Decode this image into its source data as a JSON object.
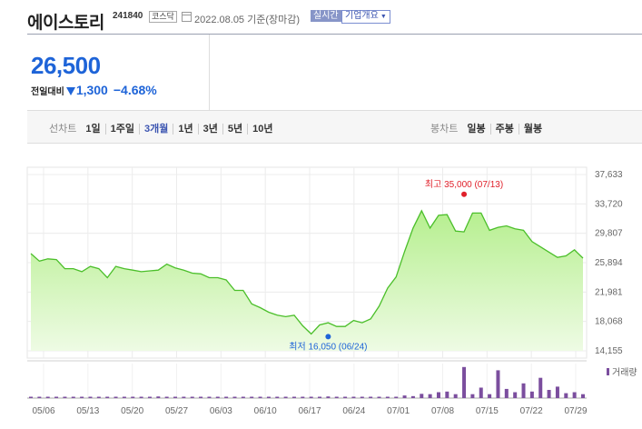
{
  "header": {
    "name": "에이스토리",
    "code": "241840",
    "market": "코스닥",
    "date": "2022.08.05 기준(장마감)",
    "realtime_label": "실시간",
    "info_label": "기업개요"
  },
  "price": {
    "current": "26,500",
    "compare_label": "전일대비",
    "change": "1,300",
    "change_pct": "−4.68%",
    "color": "#1e64d8"
  },
  "toolbar": {
    "line_label": "선차트",
    "periods": [
      "1일",
      "1주일",
      "3개월",
      "1년",
      "3년",
      "5년",
      "10년"
    ],
    "selected_period": "3개월",
    "candle_label": "봉차트",
    "candles": [
      "일봉",
      "주봉",
      "월봉"
    ]
  },
  "chart_data": {
    "type": "area",
    "x_ticks": [
      "05/06",
      "05/13",
      "05/20",
      "05/27",
      "06/03",
      "06/10",
      "06/17",
      "06/24",
      "07/01",
      "07/08",
      "07/15",
      "07/22",
      "07/29"
    ],
    "y_ticks": [
      "37,633",
      "33,720",
      "29,807",
      "25,894",
      "21,981",
      "18,068",
      "14,155"
    ],
    "ylim": [
      14155,
      37633
    ],
    "series": [
      {
        "values": [
          27100,
          26100,
          26400,
          26300,
          25100,
          25100,
          24700,
          25400,
          25100,
          23900,
          25400,
          25100,
          24900,
          24700,
          24800,
          24900,
          25700,
          25200,
          24900,
          24500,
          24400,
          23900,
          23900,
          23600,
          22200,
          22200,
          20400,
          19900,
          19300,
          18900,
          18700,
          18900,
          17500,
          16400,
          17600,
          17900,
          17400,
          17400,
          18200,
          17900,
          18400,
          20100,
          22500,
          24000,
          27400,
          30500,
          32800,
          30500,
          32200,
          32300,
          30100,
          30000,
          32500,
          32500,
          30200,
          30600,
          30800,
          30400,
          30200,
          28700,
          28000,
          27300,
          26600,
          26800,
          27600,
          26500
        ],
        "color": "#4bbf2a"
      }
    ],
    "volume": [
      0.02,
      0.03,
      0.02,
      0.04,
      0.02,
      0.03,
      0.03,
      0.02,
      0.03,
      0.02,
      0.03,
      0.02,
      0.02,
      0.02,
      0.04,
      0.05,
      0.04,
      0.03,
      0.02,
      0.02,
      0.03,
      0.02,
      0.02,
      0.02,
      0.02,
      0.02,
      0.03,
      0.03,
      0.02,
      0.02,
      0.02,
      0.02,
      0.02,
      0.02,
      0.04,
      0.05,
      0.04,
      0.03,
      0.02,
      0.03,
      0.04,
      0.02,
      0.02,
      0.02,
      0.08,
      0.06,
      0.13,
      0.12,
      0.18,
      0.2,
      0.12,
      0.95,
      0.12,
      0.32,
      0.12,
      0.85,
      0.28,
      0.18,
      0.45,
      0.2,
      0.62,
      0.25,
      0.35,
      0.15,
      0.18,
      0.12
    ],
    "volume_color": "#7b4e9e",
    "volume_label": "거래량",
    "high": {
      "label": "최고",
      "value": "35,000",
      "date": "(07/13)",
      "value_num": 35000,
      "index": 51
    },
    "low": {
      "label": "최저",
      "value": "16,050",
      "date": "(06/24)",
      "value_num": 16050,
      "index": 35
    }
  }
}
